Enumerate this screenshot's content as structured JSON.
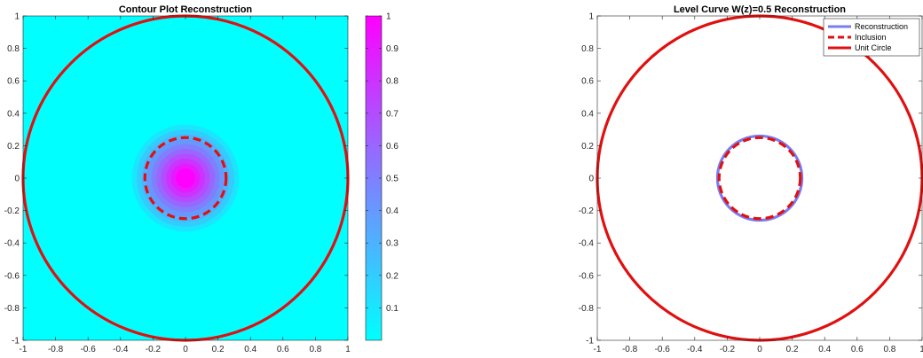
{
  "chart_data": [
    {
      "type": "heatmap",
      "title": "Contour Plot Reconstruction",
      "xlim": [
        -1,
        1
      ],
      "ylim": [
        -1,
        1
      ],
      "xticks": [
        "-1",
        "-0.8",
        "-0.6",
        "-0.4",
        "-0.2",
        "0",
        "0.2",
        "0.4",
        "0.6",
        "0.8",
        "1"
      ],
      "yticks": [
        "1",
        "0.8",
        "0.6",
        "0.4",
        "0.2",
        "0",
        "-0.2",
        "-0.4",
        "-0.6",
        "-0.8",
        "-1"
      ],
      "colormap": [
        "#00ffff",
        "#ff00ff"
      ],
      "colorbar": {
        "range": [
          0,
          1
        ],
        "ticks": [
          "1",
          "0.9",
          "0.8",
          "0.7",
          "0.6",
          "0.5",
          "0.4",
          "0.3",
          "0.2",
          "0.1"
        ]
      },
      "field": {
        "center": [
          0,
          0
        ],
        "levels": [
          {
            "value": 0.1,
            "radius": 0.33
          },
          {
            "value": 0.2,
            "radius": 0.3
          },
          {
            "value": 0.3,
            "radius": 0.27
          },
          {
            "value": 0.4,
            "radius": 0.24
          },
          {
            "value": 0.5,
            "radius": 0.21
          },
          {
            "value": 0.6,
            "radius": 0.18
          },
          {
            "value": 0.7,
            "radius": 0.15
          },
          {
            "value": 0.8,
            "radius": 0.12
          },
          {
            "value": 0.9,
            "radius": 0.09
          },
          {
            "value": 1.0,
            "radius": 0.06
          }
        ]
      },
      "curves": [
        {
          "shape": "circle",
          "radius": 1.0,
          "color": "#e01010",
          "style": "solid"
        },
        {
          "shape": "circle",
          "radius": 0.25,
          "color": "#e01010",
          "style": "dashed"
        }
      ]
    },
    {
      "type": "line",
      "title": "Level Curve W(z)=0.5 Reconstruction",
      "xlim": [
        -1,
        1
      ],
      "ylim": [
        -1,
        1
      ],
      "xticks": [
        "-1",
        "-0.8",
        "-0.6",
        "-0.4",
        "-0.2",
        "0",
        "0.2",
        "0.4",
        "0.6",
        "0.8",
        "1"
      ],
      "yticks": [
        "1",
        "0.8",
        "0.6",
        "0.4",
        "0.2",
        "0",
        "-0.2",
        "-0.4",
        "-0.6",
        "-0.8",
        "-1"
      ],
      "legend_position": "top-right",
      "series": [
        {
          "name": "Reconstruction",
          "shape": "circle",
          "radius": 0.26,
          "color": "#7b7cf0",
          "style": "solid"
        },
        {
          "name": "Inclusion",
          "shape": "circle",
          "radius": 0.25,
          "color": "#e01010",
          "style": "dashed"
        },
        {
          "name": "Unit Circle",
          "shape": "circle",
          "radius": 1.0,
          "color": "#e01010",
          "style": "solid"
        }
      ]
    }
  ]
}
